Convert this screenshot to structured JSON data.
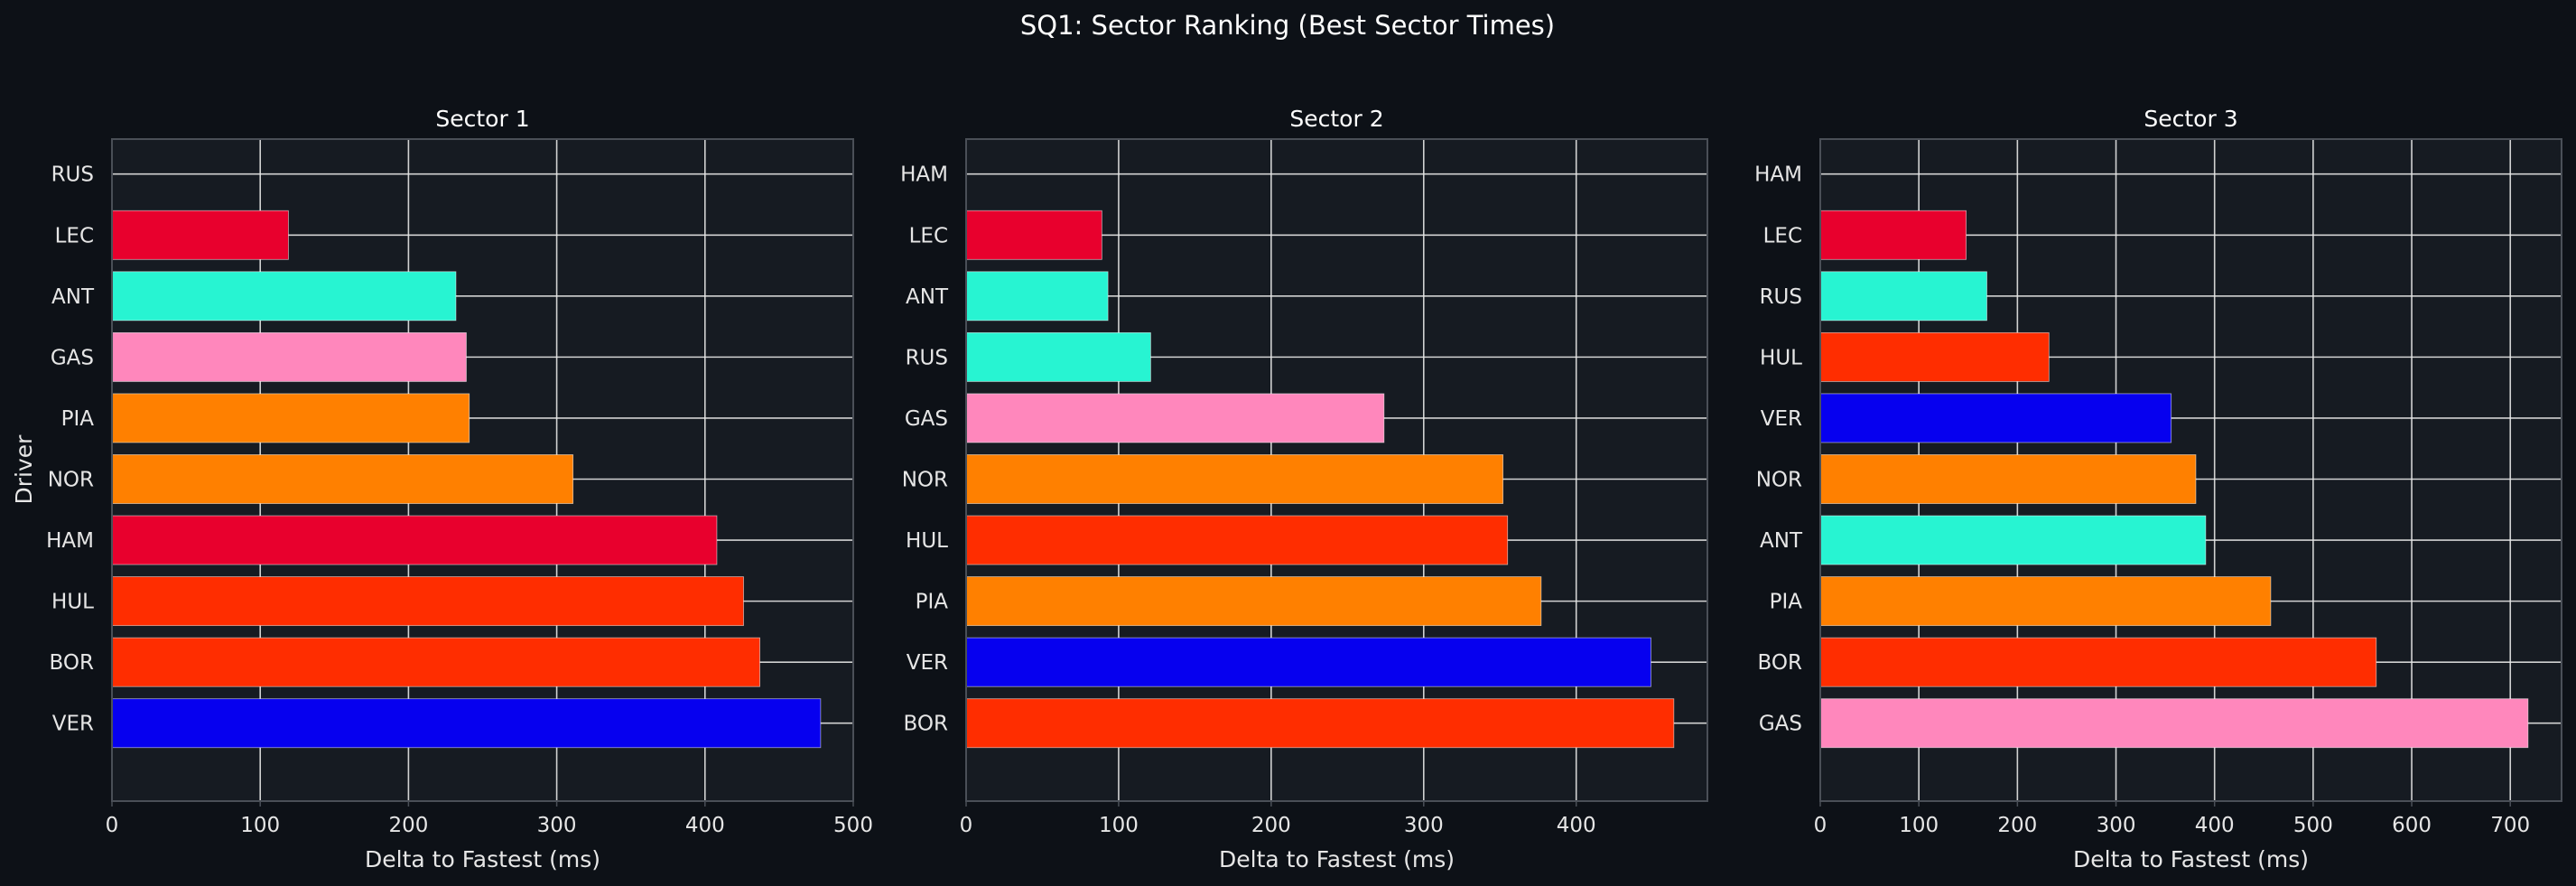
{
  "colors": {
    "background": "#0d1117",
    "plot_background": "#161b22",
    "grid": "#e6e6e6",
    "text": "#e6e6e6",
    "spine": "#4a4f57"
  },
  "chart_data": {
    "type": "bar",
    "orientation": "horizontal",
    "title": "SQ1: Sector Ranking (Best Sector Times)",
    "ylabel": "Driver",
    "grid": true,
    "legend": "none",
    "panels": [
      {
        "title": "Sector 1",
        "xlabel": "Delta to Fastest (ms)",
        "xlim": [
          0,
          500
        ],
        "xticks": [
          0,
          100,
          200,
          300,
          400,
          500
        ],
        "categories": [
          "RUS",
          "LEC",
          "ANT",
          "GAS",
          "PIA",
          "NOR",
          "HAM",
          "HUL",
          "BOR",
          "VER"
        ],
        "values": [
          0,
          119,
          232,
          239,
          241,
          311,
          408,
          426,
          437,
          478
        ],
        "colors": [
          "#27f4d2",
          "#e8002d",
          "#27f4d2",
          "#ff87bc",
          "#ff8000",
          "#ff8000",
          "#e8002d",
          "#ff2d00",
          "#ff2d00",
          "#0600ef"
        ]
      },
      {
        "title": "Sector 2",
        "xlabel": "Delta to Fastest (ms)",
        "xlim": [
          0,
          486
        ],
        "xticks": [
          0,
          100,
          200,
          300,
          400
        ],
        "categories": [
          "HAM",
          "LEC",
          "ANT",
          "RUS",
          "GAS",
          "NOR",
          "HUL",
          "PIA",
          "VER",
          "BOR"
        ],
        "values": [
          0,
          89,
          93,
          121,
          274,
          352,
          355,
          377,
          449,
          464
        ],
        "colors": [
          "#e8002d",
          "#e8002d",
          "#27f4d2",
          "#27f4d2",
          "#ff87bc",
          "#ff8000",
          "#ff2d00",
          "#ff8000",
          "#0600ef",
          "#ff2d00"
        ]
      },
      {
        "title": "Sector 3",
        "xlabel": "Delta to Fastest (ms)",
        "xlim": [
          0,
          752
        ],
        "xticks": [
          0,
          100,
          200,
          300,
          400,
          500,
          600,
          700
        ],
        "categories": [
          "HAM",
          "LEC",
          "RUS",
          "HUL",
          "VER",
          "NOR",
          "ANT",
          "PIA",
          "BOR",
          "GAS"
        ],
        "values": [
          0,
          148,
          169,
          232,
          356,
          381,
          391,
          457,
          564,
          718
        ],
        "colors": [
          "#e8002d",
          "#e8002d",
          "#27f4d2",
          "#ff2d00",
          "#0600ef",
          "#ff8000",
          "#27f4d2",
          "#ff8000",
          "#ff2d00",
          "#ff87bc"
        ]
      }
    ]
  }
}
